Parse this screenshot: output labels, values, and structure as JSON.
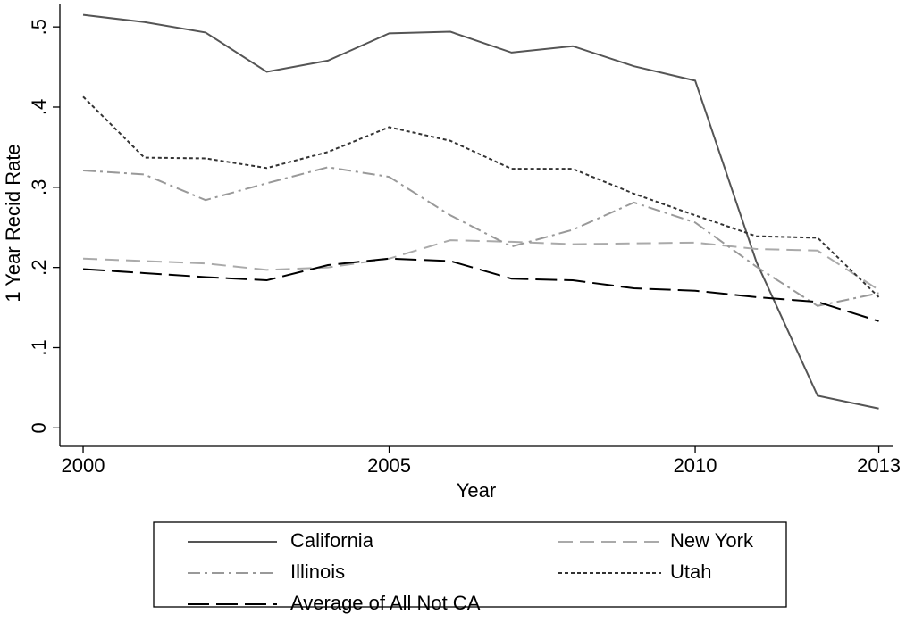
{
  "chart_data": {
    "type": "line",
    "x_label": "Year",
    "y_label": "1 Year Recid Rate",
    "x": [
      2000,
      2001,
      2002,
      2003,
      2004,
      2005,
      2006,
      2007,
      2008,
      2009,
      2010,
      2011,
      2012,
      2013
    ],
    "series": [
      {
        "name": "California",
        "color": "#555555",
        "dash": "none",
        "values": [
          0.515,
          0.506,
          0.493,
          0.444,
          0.458,
          0.492,
          0.494,
          0.468,
          0.476,
          0.451,
          0.433,
          0.207,
          0.04,
          0.024
        ]
      },
      {
        "name": "New York",
        "color": "#aaaaaa",
        "dash": "16 8",
        "values": [
          0.211,
          0.208,
          0.205,
          0.197,
          0.2,
          0.211,
          0.234,
          0.232,
          0.229,
          0.23,
          0.231,
          0.223,
          0.221,
          0.172
        ]
      },
      {
        "name": "Illinois",
        "color": "#999999",
        "dash": "14 5 3 5",
        "values": [
          0.321,
          0.316,
          0.284,
          0.305,
          0.325,
          0.313,
          0.265,
          0.226,
          0.247,
          0.281,
          0.256,
          0.201,
          0.152,
          0.168
        ]
      },
      {
        "name": "Utah",
        "color": "#333333",
        "dash": "4 3",
        "values": [
          0.413,
          0.337,
          0.336,
          0.324,
          0.344,
          0.375,
          0.358,
          0.323,
          0.323,
          0.292,
          0.265,
          0.239,
          0.237,
          0.163
        ]
      },
      {
        "name": "Average of All Not CA",
        "color": "#000000",
        "dash": "24 8",
        "values": [
          0.198,
          0.193,
          0.188,
          0.184,
          0.203,
          0.211,
          0.208,
          0.186,
          0.184,
          0.174,
          0.171,
          0.163,
          0.157,
          0.133
        ]
      }
    ],
    "xlim": [
      1999.62,
      2013.24
    ],
    "xticks": [
      2000,
      2005,
      2010,
      2013
    ],
    "ylim": [
      -0.023,
      0.528
    ],
    "yticks": [
      0,
      {
        "value": 0.1,
        "label": ".1"
      },
      {
        "value": 0.2,
        "label": ".2"
      },
      {
        "value": 0.3,
        "label": ".3"
      },
      {
        "value": 0.4,
        "label": ".4"
      },
      {
        "value": 0.5,
        "label": ".5"
      }
    ],
    "legend": "bottom"
  }
}
